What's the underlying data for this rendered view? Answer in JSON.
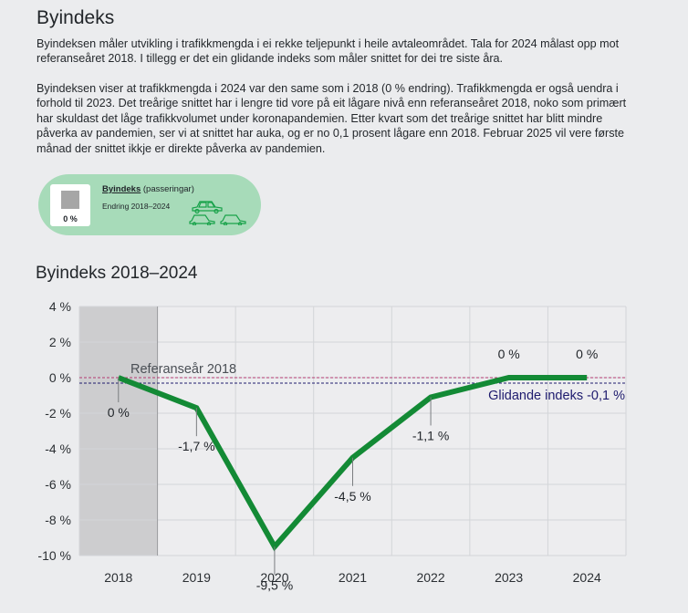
{
  "heading": "Byindeks",
  "paragraph1": "Byindeksen måler utvikling i trafikkmengda i ei rekke teljepunkt i heile avtaleområdet. Tala for 2024 målast opp mot referanseåret 2018. I tillegg er det ein glidande indeks som måler snittet for dei tre siste åra.",
  "paragraph2": "Byindeksen viser at trafikkmengda i 2024 var den same som i 2018 (0 % endring). Trafikkmengda er også uendra i forhold til 2023. Det treårige snittet har i lengre tid vore på eit lågare nivå enn referanseåret 2018, noko som primært har skuldast det låge trafikkvolumet under koronapandemien. Etter kvart som det treårige snittet har blitt mindre påverka av pandemien, ser vi at snittet har auka, og er no 0,1 prosent lågare enn 2018. Februar 2025 vil vere første månad der snittet ikkje er direkte påverka av pandemien.",
  "badge": {
    "value": "0 %",
    "title_underlined": "Byindeks",
    "title_rest": " (passeringar)",
    "change_label": "Endring 2018–2024",
    "icon": "cars-icon"
  },
  "chart_heading": "Byindeks 2018–2024",
  "chart_data": {
    "type": "line",
    "title": "Byindeks 2018–2024",
    "categories": [
      "2018",
      "2019",
      "2020",
      "2021",
      "2022",
      "2023",
      "2024"
    ],
    "series": [
      {
        "name": "Byindeks",
        "values": [
          0,
          -1.7,
          -9.5,
          -4.5,
          -1.1,
          0,
          0
        ],
        "color": "#138a35"
      }
    ],
    "data_labels": [
      "0 %",
      "-1,7 %",
      "-9,5 %",
      "-4,5 %",
      "-1,1 %",
      "0 %",
      "0 %"
    ],
    "ylim": [
      -10,
      4
    ],
    "yticks": [
      4,
      2,
      0,
      -2,
      -4,
      -6,
      -8,
      -10
    ],
    "ytick_labels": [
      "4 %",
      "2 %",
      "0 %",
      "-2 %",
      "-4 %",
      "-6 %",
      "-8 %",
      "-10 %"
    ],
    "reference_line": {
      "label": "Referanseår 2018",
      "value": 0,
      "color": "#b23a70"
    },
    "rolling_line": {
      "label": "Glidande indeks -0,1 %",
      "value": -0.1,
      "color": "#1e1b6e"
    },
    "shaded_category": "2018",
    "grid": true
  },
  "colors": {
    "background": "#ebecee",
    "line": "#138a35",
    "badge": "#a7dbb9",
    "shade": "#cdcdcf"
  }
}
